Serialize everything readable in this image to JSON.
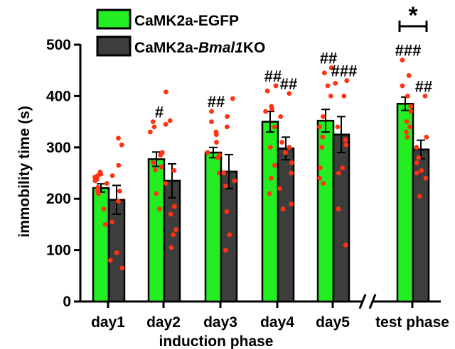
{
  "chart_data": {
    "type": "bar",
    "ylabel": "immobility time (s)",
    "xlabel": "induction phase",
    "ylim": [
      0,
      500
    ],
    "yticks": [
      0,
      100,
      200,
      300,
      400,
      500
    ],
    "categories": [
      "day1",
      "day2",
      "day3",
      "day4",
      "day5",
      "test phase"
    ],
    "axis_break_between": [
      "day5",
      "test phase"
    ],
    "series": [
      {
        "name": "CaMK2a-EGFP",
        "legend_prefix": "CaMK2a-EGFP",
        "color": "#22ee22",
        "values": [
          221,
          277,
          290,
          350,
          352,
          385
        ],
        "sem": [
          8,
          14,
          10,
          20,
          22,
          13
        ],
        "points": [
          [
            252,
            248,
            245,
            242,
            238,
            235,
            230,
            222,
            215,
            210,
            180,
            150
          ],
          [
            350,
            340,
            330,
            290,
            285,
            270,
            262,
            256,
            210,
            180
          ],
          [
            370,
            350,
            330,
            325,
            310,
            290,
            285,
            280,
            250
          ],
          [
            420,
            410,
            380,
            375,
            370,
            340,
            300,
            265,
            240,
            210
          ],
          [
            455,
            445,
            420,
            400,
            360,
            340,
            320,
            300,
            260,
            240,
            230
          ],
          [
            470,
            440,
            420,
            400,
            380,
            370,
            350,
            340,
            330,
            320
          ]
        ],
        "sig": [
          "",
          "#",
          "##",
          "##",
          "##",
          "###"
        ]
      },
      {
        "name": "CaMK2a-Bmal1KO",
        "legend_prefix": "CaMK2a-",
        "legend_italic": "Bmal1",
        "legend_suffix": "KO",
        "color": "#3d3d3d",
        "values": [
          198,
          235,
          253,
          298,
          325,
          296
        ],
        "sem": [
          28,
          33,
          33,
          22,
          35,
          18
        ],
        "points": [
          [
            318,
            305,
            265,
            245,
            215,
            195,
            155,
            95,
            80,
            65
          ],
          [
            408,
            352,
            345,
            255,
            230,
            185,
            170,
            140,
            130,
            105
          ],
          [
            395,
            360,
            340,
            250,
            235,
            225,
            175,
            130,
            100
          ],
          [
            405,
            360,
            310,
            300,
            290,
            270,
            250,
            220,
            190,
            180
          ],
          [
            430,
            425,
            400,
            340,
            315,
            305,
            260,
            250,
            180,
            110
          ],
          [
            400,
            320,
            300,
            280,
            270,
            255,
            250,
            240,
            205
          ]
        ],
        "sig": [
          "",
          "",
          "",
          "##",
          "###",
          "##"
        ]
      }
    ],
    "point_color": "#ff3311",
    "comparison": {
      "categories": [
        "test phase"
      ],
      "label": "*"
    }
  }
}
